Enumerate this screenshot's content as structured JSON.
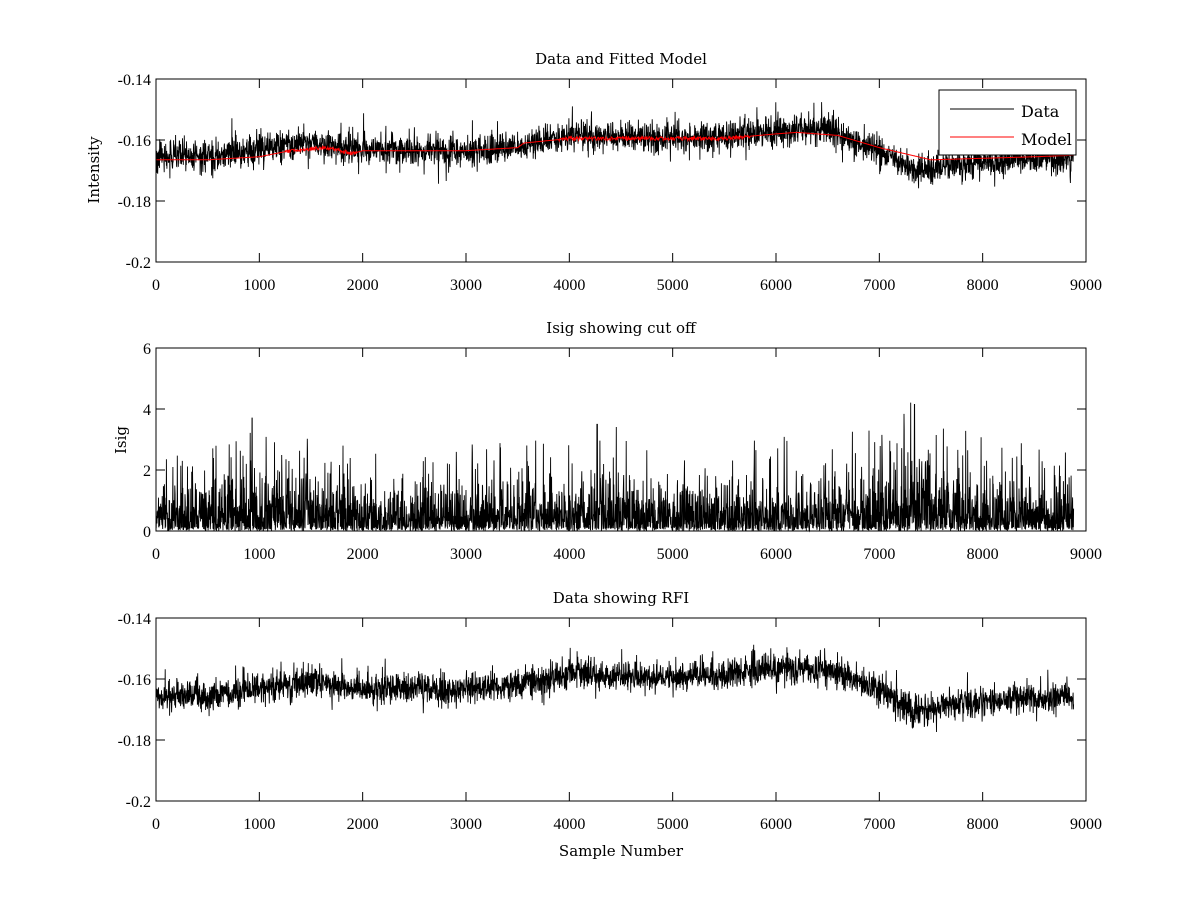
{
  "chart_data": [
    {
      "type": "line",
      "title": "Data and Fitted Model",
      "xlabel": "",
      "ylabel": "Intensity",
      "xlim": [
        0,
        9000
      ],
      "ylim": [
        -0.2,
        -0.14
      ],
      "xticks": [
        "0",
        "1000",
        "2000",
        "3000",
        "4000",
        "5000",
        "6000",
        "7000",
        "8000",
        "9000"
      ],
      "yticks": [
        "-0.14",
        "-0.16",
        "-0.18",
        "-0.2"
      ],
      "xtick_values": [
        0,
        1000,
        2000,
        3000,
        4000,
        5000,
        6000,
        7000,
        8000,
        9000
      ],
      "ytick_values": [
        -0.14,
        -0.16,
        -0.18,
        -0.2
      ],
      "legend": {
        "placement": "top-right",
        "entries": [
          "Data",
          "Model"
        ]
      },
      "grid": false,
      "series": [
        {
          "name": "Data",
          "color": "#000000",
          "x": [
            0,
            500,
            1000,
            1500,
            2000,
            2500,
            3000,
            3500,
            4000,
            4500,
            5000,
            5500,
            6000,
            6500,
            7000,
            7350,
            7500,
            8000,
            8500,
            8880
          ],
          "trend": [
            -0.1655,
            -0.1655,
            -0.163,
            -0.161,
            -0.163,
            -0.1635,
            -0.1635,
            -0.162,
            -0.1585,
            -0.159,
            -0.1595,
            -0.1585,
            -0.157,
            -0.1565,
            -0.1635,
            -0.1705,
            -0.169,
            -0.1675,
            -0.166,
            -0.1655
          ],
          "noise_amplitude": 0.0045
        },
        {
          "name": "Model",
          "color": "#ff0000",
          "x": [
            0,
            500,
            1000,
            1300,
            1650,
            1900,
            2000,
            3000,
            3500,
            3560,
            4000,
            4500,
            5000,
            5500,
            6000,
            6200,
            6600,
            7000,
            7500,
            8000,
            8500,
            8880
          ],
          "values": [
            -0.1665,
            -0.1665,
            -0.1655,
            -0.1635,
            -0.1625,
            -0.1645,
            -0.1635,
            -0.1635,
            -0.1625,
            -0.161,
            -0.1595,
            -0.1595,
            -0.1595,
            -0.1595,
            -0.158,
            -0.1575,
            -0.1585,
            -0.1625,
            -0.1665,
            -0.166,
            -0.1655,
            -0.165
          ]
        }
      ]
    },
    {
      "type": "line",
      "title": "Isig showing cut off",
      "xlabel": "",
      "ylabel": "Isig",
      "xlim": [
        0,
        9000
      ],
      "ylim": [
        0,
        6
      ],
      "xticks": [
        "0",
        "1000",
        "2000",
        "3000",
        "4000",
        "5000",
        "6000",
        "7000",
        "8000",
        "9000"
      ],
      "yticks": [
        "6",
        "4",
        "2",
        "0"
      ],
      "xtick_values": [
        0,
        1000,
        2000,
        3000,
        4000,
        5000,
        6000,
        7000,
        8000,
        9000
      ],
      "ytick_values": [
        6,
        4,
        2,
        0
      ],
      "grid": false,
      "series": [
        {
          "name": "Isig",
          "color": "#000000",
          "x": [
            0,
            1000,
            2000,
            3000,
            4000,
            5000,
            6000,
            7000,
            7340,
            8000,
            8880
          ],
          "envelope": [
            1.6,
            2.0,
            1.6,
            1.6,
            1.8,
            1.6,
            1.7,
            1.9,
            2.4,
            1.7,
            1.7
          ],
          "peaks": [
            {
              "x": 7340,
              "y": 4.15
            },
            {
              "x": 930,
              "y": 3.7
            },
            {
              "x": 4270,
              "y": 3.5
            }
          ]
        }
      ]
    },
    {
      "type": "line",
      "title": "Data showing RFI",
      "xlabel": "Sample Number",
      "ylabel": "",
      "xlim": [
        0,
        9000
      ],
      "ylim": [
        -0.2,
        -0.14
      ],
      "xticks": [
        "0",
        "1000",
        "2000",
        "3000",
        "4000",
        "5000",
        "6000",
        "7000",
        "8000",
        "9000"
      ],
      "yticks": [
        "-0.14",
        "-0.16",
        "-0.18",
        "-0.2"
      ],
      "xtick_values": [
        0,
        1000,
        2000,
        3000,
        4000,
        5000,
        6000,
        7000,
        8000,
        9000
      ],
      "ytick_values": [
        -0.14,
        -0.16,
        -0.18,
        -0.2
      ],
      "grid": false,
      "series": [
        {
          "name": "Data",
          "color": "#000000",
          "x": [
            0,
            500,
            1000,
            1500,
            2000,
            2500,
            3000,
            3500,
            4000,
            4500,
            5000,
            5500,
            6000,
            6500,
            7000,
            7350,
            7500,
            8000,
            8500,
            8880
          ],
          "trend": [
            -0.1655,
            -0.1655,
            -0.163,
            -0.161,
            -0.163,
            -0.1635,
            -0.1635,
            -0.162,
            -0.1585,
            -0.159,
            -0.1595,
            -0.1585,
            -0.157,
            -0.1565,
            -0.1635,
            -0.1705,
            -0.169,
            -0.1675,
            -0.166,
            -0.1655
          ],
          "noise_amplitude": 0.0045
        }
      ]
    }
  ]
}
